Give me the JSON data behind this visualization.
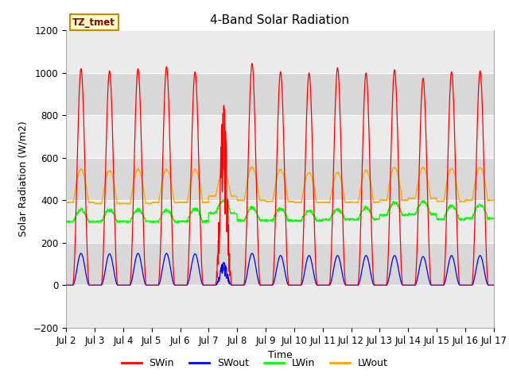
{
  "title": "4-Band Solar Radiation",
  "ylabel": "Solar Radiation (W/m2)",
  "xlabel": "Time",
  "ylim": [
    -200,
    1200
  ],
  "yticks": [
    -200,
    0,
    200,
    400,
    600,
    800,
    1000,
    1200
  ],
  "xtick_labels": [
    "Jul 2",
    "Jul 3",
    "Jul 4",
    "Jul 5",
    "Jul 6",
    "Jul 7",
    "Jul 8",
    "Jul 9",
    "Jul 10",
    "Jul 11",
    "Jul 12",
    "Jul 13",
    "Jul 14",
    "Jul 15",
    "Jul 16",
    "Jul 17"
  ],
  "legend_label": "TZ_tmet",
  "series_names": [
    "SWin",
    "SWout",
    "LWin",
    "LWout"
  ],
  "series_colors": [
    "#ff0000",
    "#0000ff",
    "#00ff00",
    "#ffa500"
  ],
  "plot_bg_color": "#ffffff",
  "band_color_light": "#ebebeb",
  "band_color_dark": "#d8d8d8",
  "n_days": 15,
  "dt_hours": 0.25,
  "SWin_peak": [
    1020,
    1010,
    1020,
    1030,
    1005,
    850,
    1045,
    1005,
    1000,
    1025,
    1000,
    1015,
    975,
    1005,
    1010
  ],
  "SWout_peak": [
    150,
    148,
    150,
    150,
    148,
    108,
    150,
    140,
    140,
    140,
    140,
    140,
    135,
    140,
    140
  ],
  "LWin_base": [
    300,
    300,
    300,
    300,
    300,
    340,
    305,
    305,
    305,
    310,
    310,
    330,
    335,
    310,
    315
  ],
  "LWin_peak_add": [
    55,
    55,
    55,
    55,
    60,
    60,
    60,
    55,
    45,
    45,
    55,
    60,
    60,
    65,
    65
  ],
  "LWout_base": [
    390,
    385,
    385,
    390,
    390,
    420,
    400,
    395,
    390,
    390,
    390,
    400,
    410,
    395,
    400
  ],
  "LWout_peak_add": [
    155,
    155,
    160,
    155,
    155,
    120,
    155,
    150,
    140,
    140,
    150,
    155,
    145,
    155,
    155
  ],
  "title_fontsize": 11,
  "label_fontsize": 9,
  "tick_fontsize": 8.5
}
